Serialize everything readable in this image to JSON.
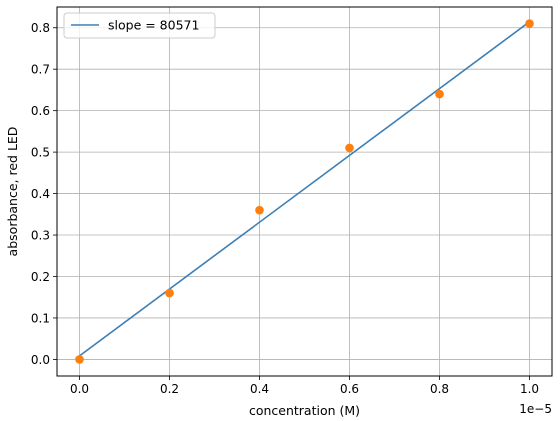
{
  "chart_data": {
    "type": "scatter",
    "xlabel": "concentration (M)",
    "ylabel": "absorbance, red LED",
    "x_offset_label": "1e−5",
    "x_tick_labels": [
      "0.0",
      "0.2",
      "0.4",
      "0.6",
      "0.8",
      "1.0"
    ],
    "x_ticks": [
      0,
      2e-06,
      4e-06,
      6e-06,
      8e-06,
      1e-05
    ],
    "y_ticks": [
      0.0,
      0.1,
      0.2,
      0.3,
      0.4,
      0.5,
      0.6,
      0.7,
      0.8
    ],
    "y_tick_labels": [
      "0.0",
      "0.1",
      "0.2",
      "0.3",
      "0.4",
      "0.5",
      "0.6",
      "0.7",
      "0.8"
    ],
    "xlim": [
      -5e-07,
      1.05e-05
    ],
    "ylim": [
      -0.04,
      0.85
    ],
    "grid": true,
    "legend_position": "top-left",
    "points": {
      "x": [
        0,
        2e-06,
        4e-06,
        6e-06,
        8e-06,
        1e-05
      ],
      "y": [
        0.0,
        0.16,
        0.36,
        0.51,
        0.64,
        0.81
      ],
      "color": "#ff7f0e"
    },
    "fit_line": {
      "name": "slope = 80571",
      "x": [
        0,
        1e-05
      ],
      "y": [
        0.0086,
        0.8143
      ],
      "color": "#3b7fb6"
    }
  }
}
